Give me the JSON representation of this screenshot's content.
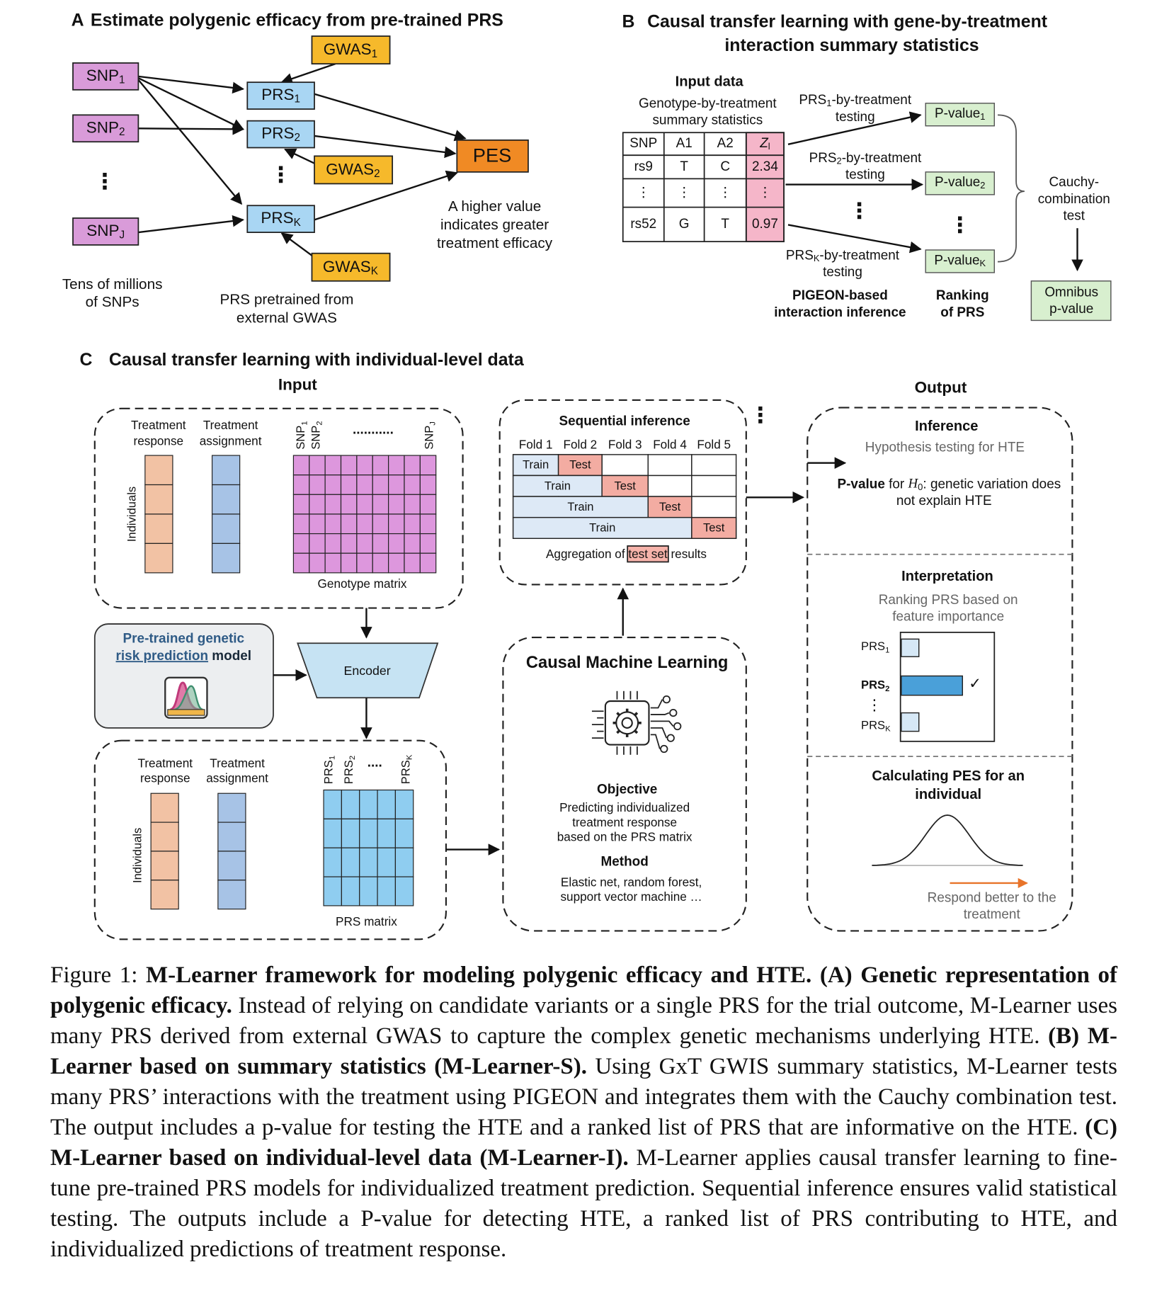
{
  "panel_a": {
    "label": "A",
    "title": "Estimate polygenic efficacy from pre-trained PRS",
    "snps": [
      {
        "base": "SNP",
        "sub": "1"
      },
      {
        "base": "SNP",
        "sub": "2"
      },
      {
        "base": "SNP",
        "sub": "J"
      }
    ],
    "prs": [
      {
        "base": "PRS",
        "sub": "1"
      },
      {
        "base": "PRS",
        "sub": "2"
      },
      {
        "base": "PRS",
        "sub": "K"
      }
    ],
    "gwas": [
      {
        "base": "GWAS",
        "sub": "1"
      },
      {
        "base": "GWAS",
        "sub": "2"
      },
      {
        "base": "GWAS",
        "sub": "K"
      }
    ],
    "pes": "PES",
    "ellipsis": "⋮",
    "pes_note": [
      "A higher value",
      "indicates greater",
      "treatment efficacy"
    ],
    "snp_note": [
      "Tens of millions",
      "of SNPs"
    ],
    "prs_note": [
      "PRS pretrained from",
      "external GWAS"
    ]
  },
  "panel_b": {
    "label": "B",
    "title": [
      "Causal transfer learning with gene-by-treatment",
      "interaction summary statistics"
    ],
    "input_title": "Input data",
    "input_subtitle": [
      "Genotype-by-treatment",
      "summary statistics"
    ],
    "table": {
      "header": [
        "SNP",
        "A1",
        "A2",
        {
          "base": "Z",
          "sub": "l"
        }
      ],
      "rows": [
        [
          "rs9",
          "T",
          "C",
          "2.34"
        ],
        [
          "⋮",
          "⋮",
          "⋮",
          "⋮"
        ],
        [
          "rs52",
          "G",
          "T",
          "0.97"
        ]
      ]
    },
    "tests": [
      {
        "base": "PRS",
        "sub": "1",
        "rest": "-by-treatment",
        "line2": "testing"
      },
      {
        "base": "PRS",
        "sub": "2",
        "rest": "-by-treatment",
        "line2": "testing"
      },
      {
        "base": "PRS",
        "sub": "K",
        "rest": "-by-treatment",
        "line2": "testing"
      }
    ],
    "pvalues": [
      {
        "base": "P-value",
        "sub": "1"
      },
      {
        "base": "P-value",
        "sub": "2"
      },
      {
        "base": "P-value",
        "sub": "K"
      }
    ],
    "combination": [
      "Cauchy-",
      "combination",
      "test"
    ],
    "omnibus": [
      "Omnibus",
      "p-value"
    ],
    "pigeon": [
      "PIGEON-based",
      "interaction inference"
    ],
    "ranking": [
      "Ranking",
      "of PRS"
    ]
  },
  "panel_c": {
    "label": "C",
    "title": "Causal transfer learning with individual-level data",
    "input": "Input",
    "output": "Output",
    "treatment_response": [
      "Treatment",
      "response"
    ],
    "treatment_assignment": [
      "Treatment",
      "assignment"
    ],
    "individuals": "Individuals",
    "snp_cols": [
      {
        "base": "SNP",
        "sub": "1"
      },
      {
        "base": "SNP",
        "sub": "2"
      },
      {
        "base": "SNP",
        "sub": "J"
      }
    ],
    "snp_dots": "...........",
    "genotype_matrix": "Genotype matrix",
    "pretrained": {
      "line1": "Pre-trained genetic",
      "link": "risk prediction",
      "rest": " model"
    },
    "encoder": "Encoder",
    "prs_cols": [
      {
        "base": "PRS",
        "sub": "1"
      },
      {
        "base": "PRS",
        "sub": "2"
      },
      {
        "base": "PRS",
        "sub": "K"
      }
    ],
    "prs_dots": "....",
    "prs_matrix": "PRS matrix",
    "sequential": {
      "title": "Sequential inference",
      "folds": [
        "Fold 1",
        "Fold 2",
        "Fold 3",
        "Fold 4",
        "Fold 5"
      ],
      "train": "Train",
      "test": "Test",
      "aggregation": [
        "Aggregation of ",
        "test set",
        " results"
      ]
    },
    "cml": {
      "title": "Causal Machine Learning",
      "objective": "Objective",
      "objective_text": [
        "Predicting individualized",
        "treatment response",
        "based on the PRS matrix"
      ],
      "method": "Method",
      "method_text": [
        "Elastic net, random forest,",
        "support vector machine …"
      ]
    },
    "inference": {
      "title": "Inference",
      "subtitle": "Hypothesis testing for HTE",
      "statement": {
        "bold": "P-value",
        "text": " for ",
        "var": "H",
        "sub": "0",
        "rest": ": genetic variation does",
        "line2": "not explain HTE"
      }
    },
    "interpretation": {
      "title": "Interpretation",
      "subtitle": [
        "Ranking PRS based on",
        "feature importance"
      ],
      "prs": [
        {
          "base": "PRS",
          "sub": "1"
        },
        {
          "base": "PRS",
          "sub": "2"
        },
        {
          "base": "PRS",
          "sub": "K"
        }
      ],
      "check": "✓"
    },
    "pes_calc": {
      "title": [
        "Calculating PES for an",
        "individual"
      ],
      "note": [
        "Respond better to the",
        "treatment"
      ]
    }
  },
  "caption": [
    "Figure 1: ",
    "M-Learner framework for modeling polygenic efficacy and HTE.",
    " (A) Genetic representation of polygenic efficacy.",
    " Instead of relying on candidate variants or a single PRS for the trial outcome, M-Learner uses many PRS derived from external GWAS to capture the complex genetic mechanisms underlying HTE. ",
    "(B) M-Learner based on summary statistics (M-Learner-S).",
    " Using GxT GWIS summary statistics, M-Learner tests many PRS’ interactions with the treatment using PIGEON and integrates them with the Cauchy combination test. The output includes a p-value for testing the HTE and a ranked list of PRS that are informative on the HTE. ",
    "(C) M-Learner based on individual-level data (M-Learner-I).",
    " M-Learner applies causal transfer learning to fine-tune pre-trained PRS models for individualized treatment prediction. Sequential inference ensures valid statistical testing. The outputs include a P-value for detecting HTE, a ranked list of PRS contributing to HTE, and individualized predictions of treatment response."
  ]
}
